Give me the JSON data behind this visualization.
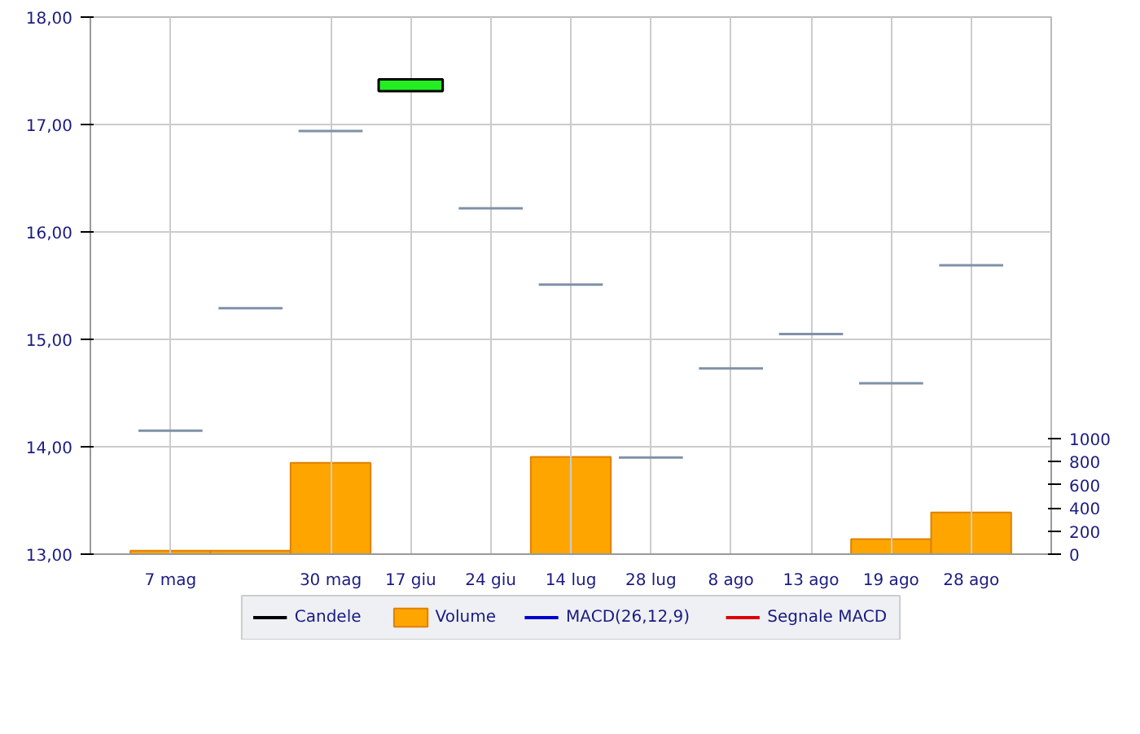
{
  "chart_data": {
    "type": "candlestick",
    "categories": [
      "7 mag",
      null,
      "30 mag",
      "17 giu",
      "24 giu",
      "14 lug",
      "28 lug",
      "8 ago",
      "13 ago",
      "19 ago",
      "28 ago"
    ],
    "series": [
      {
        "name": "Candele",
        "color": "#000000",
        "colors": [
          "#8090a8",
          "#8090a8",
          "#8090a8",
          "#22ee22",
          "#8090a8",
          "#8090a8",
          "#8090a8",
          "#8090a8",
          "#8090a8",
          "#8090a8",
          "#8090a8"
        ],
        "ohlc": [
          [
            14.15,
            14.15,
            14.15,
            14.15
          ],
          [
            15.29,
            15.29,
            15.29,
            15.29
          ],
          [
            16.94,
            16.94,
            16.94,
            16.94
          ],
          [
            17.31,
            17.42,
            17.31,
            17.42
          ],
          [
            16.22,
            16.22,
            16.22,
            16.22
          ],
          [
            15.51,
            15.51,
            15.51,
            15.51
          ],
          [
            13.9,
            13.9,
            13.9,
            13.9
          ],
          [
            14.73,
            14.73,
            14.73,
            14.73
          ],
          [
            15.05,
            15.05,
            15.05,
            15.05
          ],
          [
            14.59,
            14.59,
            14.59,
            14.59
          ],
          [
            15.69,
            15.69,
            15.69,
            15.69
          ]
        ]
      },
      {
        "type": "bar",
        "name": "Volume",
        "axis": "y2",
        "color": "#ffa500",
        "values": [
          30,
          30,
          790,
          null,
          null,
          840,
          null,
          null,
          null,
          130,
          360
        ]
      },
      {
        "type": "line",
        "name": "MACD(26,12,9)",
        "color": "#0000cc",
        "values": [
          null,
          null,
          null,
          null,
          null,
          null,
          null,
          null,
          null,
          null,
          null
        ]
      },
      {
        "type": "line",
        "name": "Segnale MACD",
        "color": "#dd0000",
        "values": [
          null,
          null,
          null,
          null,
          null,
          null,
          null,
          null,
          null,
          null,
          null
        ]
      }
    ],
    "ylim": [
      13,
      18
    ],
    "yticks": [
      {
        "value": 13,
        "label": "13,00"
      },
      {
        "value": 14,
        "label": "14,00"
      },
      {
        "value": 15,
        "label": "15,00"
      },
      {
        "value": 16,
        "label": "16,00"
      },
      {
        "value": 17,
        "label": "17,00"
      },
      {
        "value": 18,
        "label": "18,00"
      }
    ],
    "y2lim": [
      0,
      4640
    ],
    "y2ticks": [
      0,
      200,
      400,
      600,
      800,
      1000
    ],
    "grid": true,
    "legend": "bottom"
  }
}
